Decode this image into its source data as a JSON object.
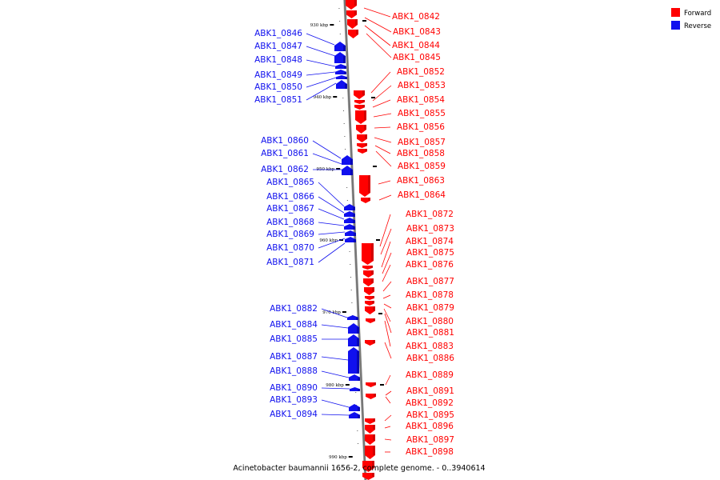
{
  "caption": "Acinetobacter baumannii 1656-2, complete genome. - 0..3940614",
  "colors": {
    "forward": "#ff0000",
    "reverse": "#1010ee",
    "backbone": "#888888"
  },
  "legend": [
    {
      "label": "Forward",
      "color": "#ff0000"
    },
    {
      "label": "Reverse",
      "color": "#1010ee"
    }
  ],
  "ticks": [
    "930 kbp",
    "940 kbp",
    "950 kbp",
    "960 kbp",
    "970 kbp",
    "980 kbp",
    "990 kbp"
  ],
  "genes": {
    "forward": [
      "ABK1_0842",
      "ABK1_0843",
      "ABK1_0844",
      "ABK1_0845",
      "ABK1_0852",
      "ABK1_0853",
      "ABK1_0854",
      "ABK1_0855",
      "ABK1_0856",
      "ABK1_0857",
      "ABK1_0858",
      "ABK1_0859",
      "ABK1_0863",
      "ABK1_0864",
      "ABK1_0872",
      "ABK1_0873",
      "ABK1_0874",
      "ABK1_0875",
      "ABK1_0876",
      "ABK1_0877",
      "ABK1_0878",
      "ABK1_0879",
      "ABK1_0880",
      "ABK1_0881",
      "ABK1_0883",
      "ABK1_0886",
      "ABK1_0889",
      "ABK1_0891",
      "ABK1_0892",
      "ABK1_0895",
      "ABK1_0896",
      "ABK1_0897",
      "ABK1_0898"
    ],
    "reverse": [
      "ABK1_0846",
      "ABK1_0847",
      "ABK1_0848",
      "ABK1_0849",
      "ABK1_0850",
      "ABK1_0851",
      "ABK1_0860",
      "ABK1_0861",
      "ABK1_0862",
      "ABK1_0865",
      "ABK1_0866",
      "ABK1_0867",
      "ABK1_0868",
      "ABK1_0869",
      "ABK1_0870",
      "ABK1_0871",
      "ABK1_0882",
      "ABK1_0884",
      "ABK1_0885",
      "ABK1_0887",
      "ABK1_0888",
      "ABK1_0890",
      "ABK1_0893",
      "ABK1_0894"
    ]
  }
}
